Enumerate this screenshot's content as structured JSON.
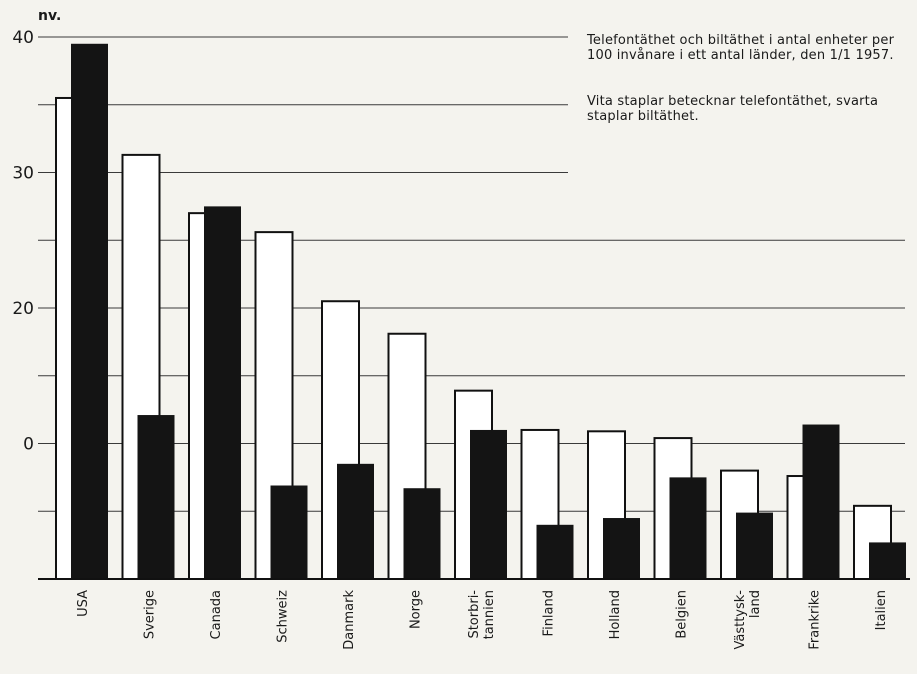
{
  "chart_data": {
    "type": "bar",
    "unit_label": "nv.",
    "y_tick_labels": [
      "40",
      "30",
      "20",
      "0"
    ],
    "ylim": [
      0,
      40
    ],
    "grid": true,
    "categories": [
      "USA",
      "Sverige",
      "Canada",
      "Schweiz",
      "Danmark",
      "Norge",
      "Storbri-\ntannien",
      "Finland",
      "Holland",
      "Belgien",
      "Västtysk-\nland",
      "Frankrike",
      "Italien"
    ],
    "series": [
      {
        "values": [
          35.5,
          31.3,
          27.0,
          25.6,
          20.5,
          18.1,
          13.9,
          11.0,
          10.9,
          10.4,
          8.0,
          7.6,
          5.4
        ]
      },
      {
        "values": [
          39.5,
          12.1,
          27.5,
          6.9,
          8.5,
          6.7,
          11.0,
          4.0,
          4.5,
          7.5,
          4.9,
          11.4,
          2.7
        ]
      }
    ],
    "colors": {
      "white_bar": "#ffffff",
      "black_bar": "#141414",
      "grid": "#3a3a3a"
    }
  },
  "notes": {
    "description": "Telefontäthet och biltäthet i antal enheter per 100 invånare i ett antal länder, den 1/1 1957.",
    "legend": "Vita staplar betecknar telefontäthet, svarta staplar biltäthet."
  }
}
